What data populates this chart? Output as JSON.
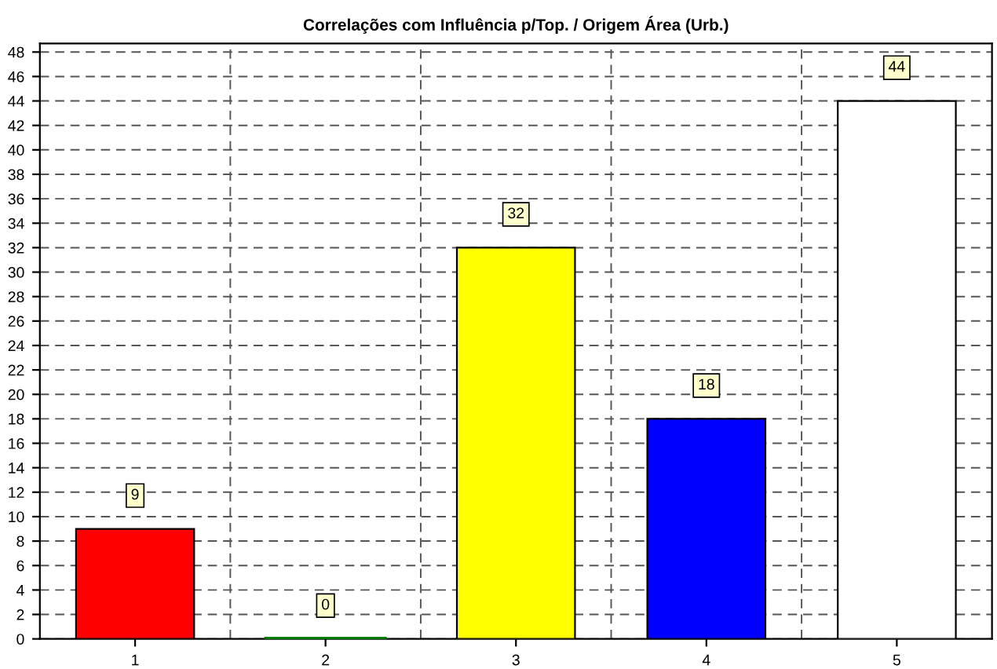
{
  "chart_data": {
    "type": "bar",
    "title": "Correlações com Influência p/Top. / Origem Área (Urb.)",
    "categories": [
      "1",
      "2",
      "3",
      "4",
      "5"
    ],
    "values": [
      9,
      0,
      32,
      18,
      44
    ],
    "colors": [
      "#ff0000",
      "#008000",
      "#ffff00",
      "#0000ff",
      "#ffffff"
    ],
    "ylim": [
      0,
      48.7
    ],
    "yticks": [
      0,
      2,
      4,
      6,
      8,
      10,
      12,
      14,
      16,
      18,
      20,
      22,
      24,
      26,
      28,
      30,
      32,
      34,
      36,
      38,
      40,
      42,
      44,
      46,
      48
    ],
    "grid": true,
    "data_labels": true
  }
}
